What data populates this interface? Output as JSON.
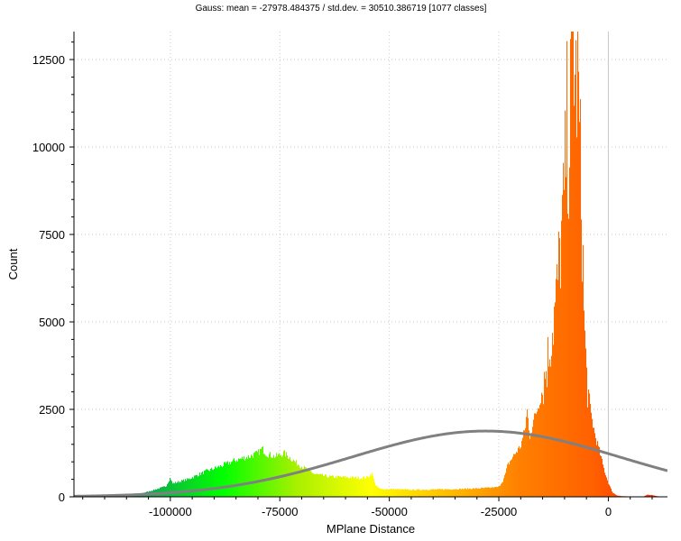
{
  "chart_data": {
    "type": "bar",
    "title": "Gauss: mean = -27978.484375 / std.dev. = 30510.386719 [1077 classes]",
    "xlabel": "MPlane Distance",
    "ylabel": "Count",
    "xlim": [
      -122000,
      13500
    ],
    "ylim": [
      0,
      13300
    ],
    "x_ticks": [
      -100000,
      -75000,
      -50000,
      -25000,
      0
    ],
    "x_tick_labels": [
      "-100000",
      "-75000",
      "-50000",
      "-25000",
      "0"
    ],
    "y_ticks": [
      0,
      2500,
      5000,
      7500,
      10000,
      12500
    ],
    "y_tick_labels": [
      "0",
      "2500",
      "5000",
      "7500",
      "10000",
      "12500"
    ],
    "grid": true,
    "colormap": [
      "#005f8f",
      "#10a850",
      "#00ff00",
      "#a8f000",
      "#ffff00",
      "#ffc000",
      "#ff8000",
      "#ff6000",
      "#ff2000"
    ],
    "reference_line": {
      "x": 0,
      "color": "#c8c8c8"
    },
    "gauss_curve": {
      "mean": -27978.484375,
      "std": 30510.386719,
      "peak": 1880,
      "color": "#808080"
    },
    "histogram_profile": {
      "x": [
        -122000,
        -112000,
        -108000,
        -105000,
        -101000,
        -100000,
        -99500,
        -96000,
        -92000,
        -88000,
        -85000,
        -82000,
        -80000,
        -79000,
        -78000,
        -76000,
        -74000,
        -71000,
        -69000,
        -67000,
        -64000,
        -60000,
        -57000,
        -55000,
        -54000,
        -53000,
        -52000,
        -49000,
        -45000,
        -40000,
        -35000,
        -30000,
        -27000,
        -25000,
        -24000,
        -23500,
        -23000,
        -21500,
        -20000,
        -19000,
        -18500,
        -18000,
        -17000,
        -16000,
        -15000,
        -14000,
        -13000,
        -12000,
        -11000,
        -10000,
        -9500,
        -9000,
        -8500,
        -8000,
        -7500,
        -7000,
        -6500,
        -6000,
        -5500,
        -5000,
        -4000,
        -3000,
        -2000,
        -1000,
        0,
        1000,
        2000,
        3000,
        5000,
        8000,
        9000,
        10000,
        11000,
        12000,
        13500
      ],
      "y": [
        0,
        10,
        60,
        150,
        300,
        550,
        380,
        500,
        720,
        900,
        1050,
        1150,
        1250,
        1380,
        1230,
        1150,
        1250,
        950,
        800,
        650,
        580,
        560,
        540,
        560,
        680,
        300,
        220,
        220,
        200,
        210,
        220,
        240,
        260,
        280,
        480,
        650,
        900,
        1200,
        1450,
        1950,
        2500,
        1700,
        2200,
        2600,
        3100,
        3800,
        4600,
        5500,
        7000,
        8600,
        10800,
        9500,
        12000,
        13300,
        11500,
        12200,
        10000,
        8000,
        5000,
        3500,
        2400,
        1750,
        1300,
        800,
        400,
        120,
        40,
        20,
        10,
        10,
        60,
        50,
        20,
        10,
        0
      ]
    }
  }
}
